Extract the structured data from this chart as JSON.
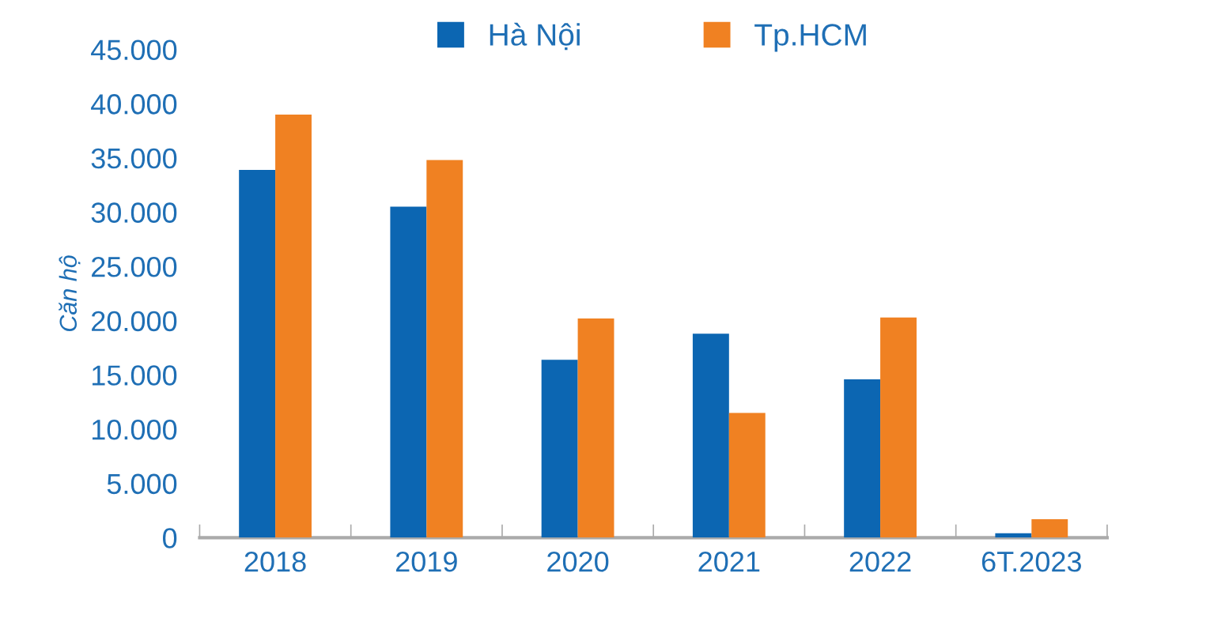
{
  "chart_data": {
    "type": "bar",
    "ylabel": "Căn hộ",
    "categories": [
      "2018",
      "2019",
      "2020",
      "2021",
      "2022",
      "6T.2023"
    ],
    "series": [
      {
        "name": "Hà Nội",
        "color": "#0c66b2",
        "values": [
          33900,
          30500,
          16400,
          18800,
          14600,
          400
        ]
      },
      {
        "name": "Tp.HCM",
        "color": "#f08122",
        "values": [
          39000,
          34800,
          20200,
          11500,
          20300,
          1700
        ]
      }
    ],
    "ylim": [
      0,
      45000
    ],
    "yticks": [
      {
        "value": 0,
        "label": "0"
      },
      {
        "value": 5000,
        "label": "5.000"
      },
      {
        "value": 10000,
        "label": "10.000"
      },
      {
        "value": 15000,
        "label": "15.000"
      },
      {
        "value": 20000,
        "label": "20.000"
      },
      {
        "value": 25000,
        "label": "25.000"
      },
      {
        "value": 30000,
        "label": "30.000"
      },
      {
        "value": 35000,
        "label": "35.000"
      },
      {
        "value": 40000,
        "label": "40.000"
      },
      {
        "value": 45000,
        "label": "45.000"
      }
    ],
    "grid": false,
    "legend": "top"
  }
}
